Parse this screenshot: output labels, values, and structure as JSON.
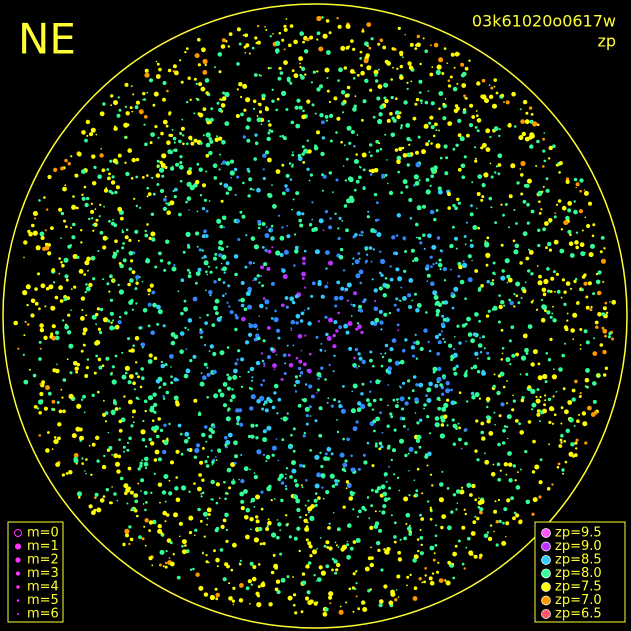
{
  "header": {
    "direction": "NE",
    "frame_id": "03k61020o0617w",
    "mode": "zp"
  },
  "legend_m": {
    "items": [
      {
        "label": "m=0"
      },
      {
        "label": "m=1"
      },
      {
        "label": "m=2"
      },
      {
        "label": "m=3"
      },
      {
        "label": "m=4"
      },
      {
        "label": "m=5"
      },
      {
        "label": "m=6"
      }
    ],
    "color": "#ff33ff"
  },
  "legend_zp": {
    "items": [
      {
        "label": "zp=9.5",
        "color": "#ff55ff"
      },
      {
        "label": "zp=9.0",
        "color": "#bb33ff"
      },
      {
        "label": "zp=8.5",
        "color": "#33ccff"
      },
      {
        "label": "zp=8.0",
        "color": "#33ff99"
      },
      {
        "label": "zp=7.5",
        "color": "#ffff00"
      },
      {
        "label": "zp=7.0",
        "color": "#ff9900"
      },
      {
        "label": "zp=6.5",
        "color": "#ff5566"
      }
    ]
  }
}
